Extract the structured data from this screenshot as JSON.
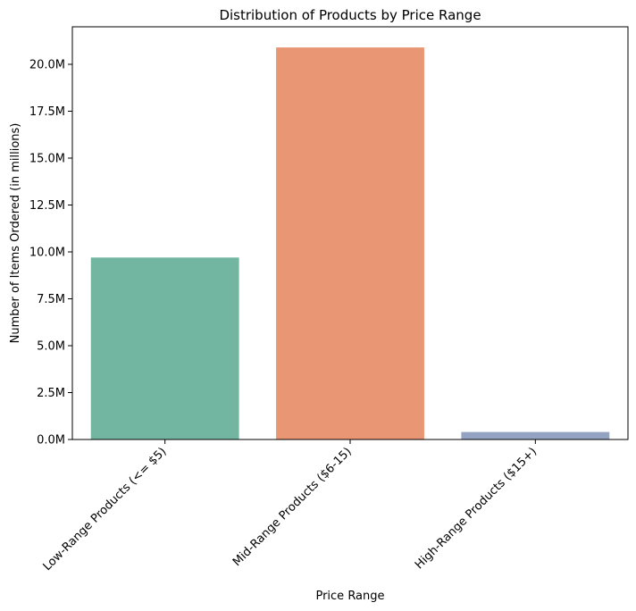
{
  "chart_data": {
    "type": "bar",
    "title": "Distribution of Products by Price Range",
    "xlabel": "Price Range",
    "ylabel": "Number of Items Ordered (in millions)",
    "categories": [
      "Low-Range Products (<= $5)",
      "Mid-Range Products ($6-15)",
      "High-Range Products ($15+)"
    ],
    "values": [
      9.7,
      20.9,
      0.4
    ],
    "ylim": [
      0,
      22
    ],
    "yticks": [
      0,
      2.5,
      5,
      7.5,
      10,
      12.5,
      15,
      17.5,
      20
    ],
    "ytick_labels": [
      "0.0M",
      "2.5M",
      "5.0M",
      "7.5M",
      "10.0M",
      "12.5M",
      "15.0M",
      "17.5M",
      "20.0M"
    ],
    "colors": [
      "#72b6a1",
      "#e99675",
      "#95a3c3"
    ],
    "grid": false,
    "legend": "none"
  }
}
